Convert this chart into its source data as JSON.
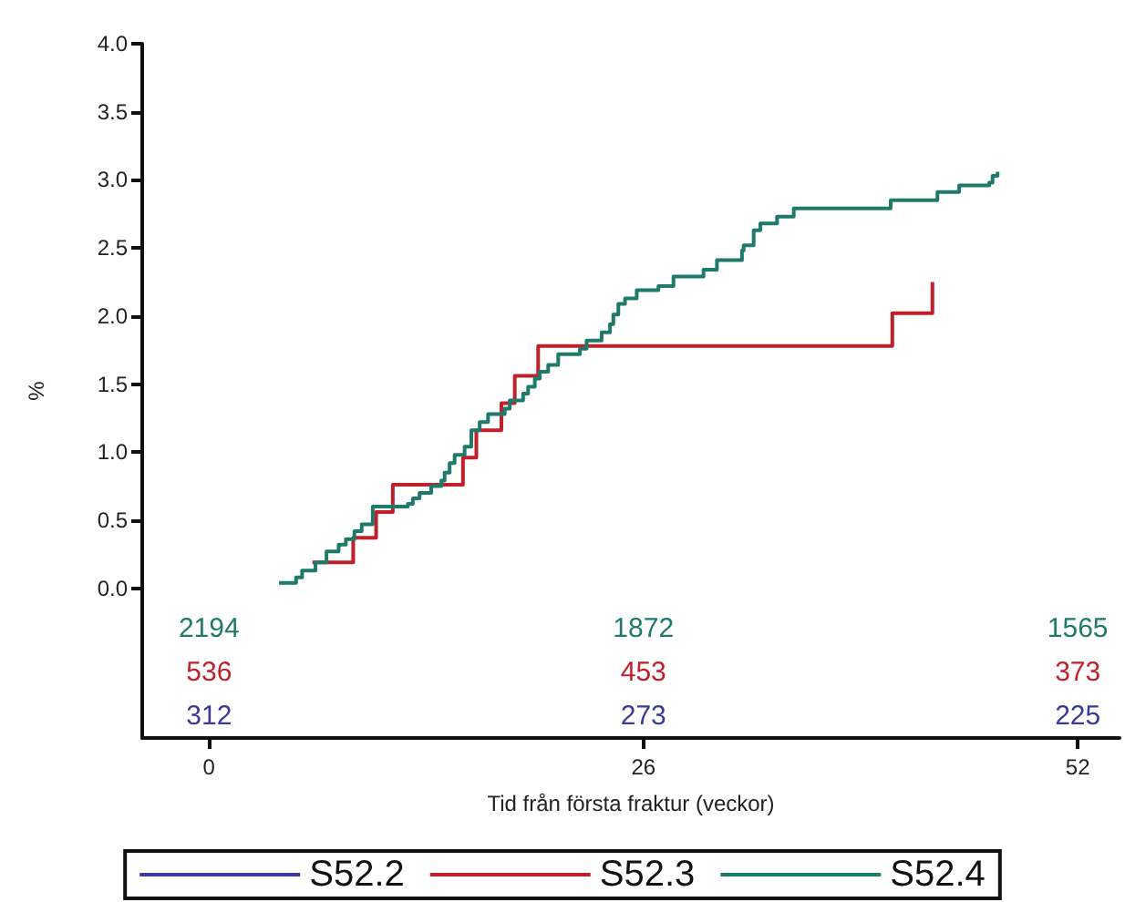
{
  "chart_data": {
    "type": "step",
    "xlabel": "Tid från första fraktur (veckor)",
    "ylabel": "%",
    "xlim": [
      -4,
      54.5
    ],
    "xticks": [
      0,
      26,
      52
    ],
    "ylim": [
      -1.1,
      4.0
    ],
    "yticks": [
      {
        "value": 0,
        "label": "0.0"
      },
      {
        "value": 0.5,
        "label": "0.5"
      },
      {
        "value": 1,
        "label": "1.0"
      },
      {
        "value": 1.5,
        "label": "1.5"
      },
      {
        "value": 2,
        "label": "2.0"
      },
      {
        "value": 2.5,
        "label": "2.5"
      },
      {
        "value": 3,
        "label": "3.0"
      },
      {
        "value": 3.5,
        "label": "3.5"
      },
      {
        "value": 4,
        "label": "4.0"
      }
    ],
    "grid": false,
    "legend": "bottom",
    "marker": "none",
    "line_style": "solid",
    "series": [
      {
        "name": "S52.2",
        "color": "#3a3a9a"
      },
      {
        "name": "S52.3",
        "color": "#c0202a",
        "x": [
          6.19,
          8.63,
          10.0,
          11.0,
          15.2,
          16.0,
          17.5,
          18.3,
          19.7,
          40.9,
          43.3
        ],
        "values": [
          0.19,
          0.37,
          0.56,
          0.76,
          0.96,
          1.16,
          1.36,
          1.56,
          1.78,
          2.02,
          2.25
        ]
      },
      {
        "name": "S52.4",
        "color": "#1e7a6a",
        "x": [
          4.19,
          5.21,
          5.57,
          6.37,
          7.03,
          7.76,
          8.19,
          8.7,
          9.14,
          9.8,
          11.9,
          12.2,
          12.6,
          13.3,
          13.9,
          14.1,
          14.4,
          14.7,
          15.3,
          15.7,
          16.2,
          16.7,
          17.7,
          18.0,
          18.8,
          19.1,
          19.5,
          19.8,
          20.3,
          20.9,
          22.2,
          22.6,
          23.5,
          24.0,
          24.2,
          24.5,
          24.9,
          25.6,
          26.9,
          27.8,
          29.6,
          30.4,
          31.9,
          32.0,
          32.6,
          33.0,
          34.0,
          35.0,
          40.8,
          43.6,
          44.9,
          46.7,
          46.9,
          47.2
        ],
        "values": [
          0.04,
          0.08,
          0.13,
          0.19,
          0.27,
          0.32,
          0.36,
          0.42,
          0.47,
          0.6,
          0.62,
          0.66,
          0.7,
          0.75,
          0.79,
          0.85,
          0.92,
          0.98,
          1.04,
          1.16,
          1.22,
          1.28,
          1.32,
          1.38,
          1.43,
          1.48,
          1.54,
          1.59,
          1.64,
          1.72,
          1.76,
          1.82,
          1.88,
          1.94,
          2.01,
          2.09,
          2.13,
          2.19,
          2.22,
          2.29,
          2.34,
          2.41,
          2.48,
          2.52,
          2.63,
          2.68,
          2.73,
          2.79,
          2.85,
          2.91,
          2.96,
          2.98,
          3.03,
          3.06
        ]
      }
    ],
    "annotations": [
      "2194",
      "1872",
      "1565",
      "536",
      "453",
      "373",
      "312",
      "273",
      "225"
    ]
  }
}
